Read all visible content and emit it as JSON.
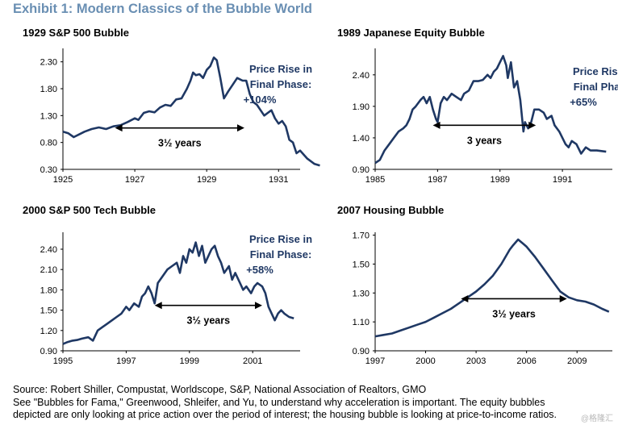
{
  "exhibit_title": "Exhibit 1: Modern Classics of the Bubble World",
  "source_lines": [
    "Source: Robert Shiller, Compustat, Worldscope, S&P, National Association of Realtors, GMO",
    "See \"Bubbles for Fama,\" Greenwood, Shleifer, and Yu, to understand why acceleration is important. The equity bubbles",
    "depicted are only looking at price action over the period of interest; the housing bubble is looking at price-to-income ratios."
  ],
  "watermark": "@格隆汇",
  "colors": {
    "line": "#1f3864",
    "title": "#6a8fb3",
    "axis": "#000000"
  },
  "chart_data": [
    {
      "type": "line",
      "title": "1929 S&P 500 Bubble",
      "phase_text": [
        "Price Rise in",
        "Final Phase:",
        "+104%"
      ],
      "span_label": "3½ years",
      "span": [
        1926.45,
        1930.05
      ],
      "span_y": 1.07,
      "xlim": [
        1925,
        1931.6
      ],
      "ylim": [
        0.3,
        2.55
      ],
      "x_ticks": [
        1925,
        1927,
        1929,
        1931
      ],
      "x_tick_labels": [
        "1925",
        "1927",
        "1929",
        "1931"
      ],
      "y_ticks": [
        0.3,
        0.8,
        1.3,
        1.8,
        2.3
      ],
      "y_tick_labels": [
        "0.30",
        "0.80",
        "1.30",
        "1.80",
        "2.30"
      ],
      "series": [
        {
          "points": [
            [
              1925,
              1.0
            ],
            [
              1925.15,
              0.97
            ],
            [
              1925.3,
              0.9
            ],
            [
              1925.45,
              0.95
            ],
            [
              1925.6,
              1.0
            ],
            [
              1925.8,
              1.05
            ],
            [
              1926,
              1.08
            ],
            [
              1926.2,
              1.05
            ],
            [
              1926.4,
              1.1
            ],
            [
              1926.6,
              1.12
            ],
            [
              1926.8,
              1.18
            ],
            [
              1927,
              1.25
            ],
            [
              1927.1,
              1.22
            ],
            [
              1927.25,
              1.35
            ],
            [
              1927.4,
              1.38
            ],
            [
              1927.55,
              1.36
            ],
            [
              1927.7,
              1.45
            ],
            [
              1927.85,
              1.5
            ],
            [
              1928,
              1.48
            ],
            [
              1928.15,
              1.6
            ],
            [
              1928.3,
              1.62
            ],
            [
              1928.45,
              1.8
            ],
            [
              1928.55,
              1.95
            ],
            [
              1928.62,
              2.1
            ],
            [
              1928.7,
              2.05
            ],
            [
              1928.8,
              2.07
            ],
            [
              1928.9,
              2.0
            ],
            [
              1929.0,
              2.15
            ],
            [
              1929.1,
              2.22
            ],
            [
              1929.2,
              2.38
            ],
            [
              1929.28,
              2.33
            ],
            [
              1929.38,
              2.0
            ],
            [
              1929.48,
              1.62
            ],
            [
              1929.6,
              1.75
            ],
            [
              1929.75,
              1.9
            ],
            [
              1929.85,
              2.0
            ],
            [
              1930.0,
              1.95
            ],
            [
              1930.1,
              1.95
            ],
            [
              1930.2,
              1.7
            ],
            [
              1930.3,
              1.55
            ],
            [
              1930.4,
              1.5
            ],
            [
              1930.5,
              1.4
            ],
            [
              1930.6,
              1.3
            ],
            [
              1930.7,
              1.35
            ],
            [
              1930.8,
              1.4
            ],
            [
              1930.9,
              1.25
            ],
            [
              1931.0,
              1.15
            ],
            [
              1931.1,
              1.2
            ],
            [
              1931.2,
              1.1
            ],
            [
              1931.3,
              0.85
            ],
            [
              1931.4,
              0.8
            ],
            [
              1931.5,
              0.6
            ],
            [
              1931.6,
              0.65
            ],
            [
              1931.8,
              0.5
            ],
            [
              1932.0,
              0.4
            ],
            [
              1932.15,
              0.37
            ]
          ]
        }
      ]
    },
    {
      "type": "line",
      "title": "1989 Japanese Equity Bubble",
      "phase_text": [
        "Price Rise in",
        "Final Phase:",
        "+65%"
      ],
      "span_label": "3 years",
      "span": [
        1986.85,
        1990.15
      ],
      "span_y": 1.6,
      "xlim": [
        1985,
        1992.6
      ],
      "ylim": [
        0.9,
        2.82
      ],
      "x_ticks": [
        1985,
        1987,
        1989,
        1991
      ],
      "x_tick_labels": [
        "1985",
        "1987",
        "1989",
        "1991"
      ],
      "y_ticks": [
        0.9,
        1.4,
        1.9,
        2.4
      ],
      "y_tick_labels": [
        "0.90",
        "1.40",
        "1.90",
        "2.40"
      ],
      "series": [
        {
          "points": [
            [
              1985,
              1.0
            ],
            [
              1985.15,
              1.05
            ],
            [
              1985.3,
              1.2
            ],
            [
              1985.45,
              1.3
            ],
            [
              1985.6,
              1.4
            ],
            [
              1985.75,
              1.5
            ],
            [
              1985.9,
              1.55
            ],
            [
              1986.0,
              1.6
            ],
            [
              1986.1,
              1.7
            ],
            [
              1986.2,
              1.85
            ],
            [
              1986.3,
              1.9
            ],
            [
              1986.45,
              2.0
            ],
            [
              1986.55,
              2.05
            ],
            [
              1986.65,
              1.95
            ],
            [
              1986.75,
              2.05
            ],
            [
              1986.85,
              1.85
            ],
            [
              1986.95,
              1.7
            ],
            [
              1987.0,
              1.65
            ],
            [
              1987.1,
              1.95
            ],
            [
              1987.2,
              2.05
            ],
            [
              1987.3,
              2.0
            ],
            [
              1987.45,
              2.1
            ],
            [
              1987.6,
              2.05
            ],
            [
              1987.75,
              2.0
            ],
            [
              1987.85,
              2.1
            ],
            [
              1988.0,
              2.15
            ],
            [
              1988.15,
              2.3
            ],
            [
              1988.3,
              2.3
            ],
            [
              1988.45,
              2.32
            ],
            [
              1988.6,
              2.4
            ],
            [
              1988.7,
              2.35
            ],
            [
              1988.8,
              2.45
            ],
            [
              1988.9,
              2.5
            ],
            [
              1989.0,
              2.6
            ],
            [
              1989.1,
              2.7
            ],
            [
              1989.2,
              2.55
            ],
            [
              1989.25,
              2.35
            ],
            [
              1989.35,
              2.6
            ],
            [
              1989.45,
              2.2
            ],
            [
              1989.55,
              2.3
            ],
            [
              1989.65,
              2.0
            ],
            [
              1989.75,
              1.5
            ],
            [
              1989.8,
              1.65
            ],
            [
              1989.9,
              1.55
            ],
            [
              1990.0,
              1.65
            ],
            [
              1990.1,
              1.85
            ],
            [
              1990.25,
              1.85
            ],
            [
              1990.4,
              1.8
            ],
            [
              1990.5,
              1.7
            ],
            [
              1990.65,
              1.75
            ],
            [
              1990.75,
              1.6
            ],
            [
              1990.9,
              1.5
            ],
            [
              1991.0,
              1.4
            ],
            [
              1991.1,
              1.3
            ],
            [
              1991.2,
              1.25
            ],
            [
              1991.3,
              1.35
            ],
            [
              1991.45,
              1.3
            ],
            [
              1991.6,
              1.15
            ],
            [
              1991.75,
              1.25
            ],
            [
              1991.9,
              1.2
            ],
            [
              1992.1,
              1.2
            ],
            [
              1992.4,
              1.18
            ]
          ]
        }
      ]
    },
    {
      "type": "line",
      "title": "2000 S&P 500 Tech Bubble",
      "phase_text": [
        "Price Rise in",
        "Final Phase:",
        "+58%"
      ],
      "span_label": "3½ years",
      "span": [
        1997.9,
        2001.3
      ],
      "span_y": 1.57,
      "xlim": [
        1995,
        2002.5
      ],
      "ylim": [
        0.9,
        2.65
      ],
      "x_ticks": [
        1995,
        1997,
        1999,
        2001
      ],
      "x_tick_labels": [
        "1995",
        "1997",
        "1999",
        "2001"
      ],
      "y_ticks": [
        0.9,
        1.2,
        1.5,
        1.8,
        2.1,
        2.4
      ],
      "y_tick_labels": [
        "0.90",
        "1.20",
        "1.50",
        "1.80",
        "2.10",
        "2.40"
      ],
      "series": [
        {
          "points": [
            [
              1995,
              1.0
            ],
            [
              1995.15,
              1.03
            ],
            [
              1995.3,
              1.05
            ],
            [
              1995.45,
              1.06
            ],
            [
              1995.6,
              1.08
            ],
            [
              1995.8,
              1.1
            ],
            [
              1995.95,
              1.05
            ],
            [
              1996.1,
              1.2
            ],
            [
              1996.25,
              1.25
            ],
            [
              1996.4,
              1.3
            ],
            [
              1996.55,
              1.35
            ],
            [
              1996.7,
              1.4
            ],
            [
              1996.85,
              1.45
            ],
            [
              1997.0,
              1.55
            ],
            [
              1997.1,
              1.5
            ],
            [
              1997.25,
              1.6
            ],
            [
              1997.4,
              1.55
            ],
            [
              1997.5,
              1.7
            ],
            [
              1997.6,
              1.75
            ],
            [
              1997.7,
              1.85
            ],
            [
              1997.8,
              1.75
            ],
            [
              1997.9,
              1.6
            ],
            [
              1998.0,
              1.9
            ],
            [
              1998.15,
              2.0
            ],
            [
              1998.3,
              2.1
            ],
            [
              1998.45,
              2.15
            ],
            [
              1998.6,
              2.2
            ],
            [
              1998.7,
              2.05
            ],
            [
              1998.8,
              2.3
            ],
            [
              1998.9,
              2.2
            ],
            [
              1999.0,
              2.4
            ],
            [
              1999.1,
              2.35
            ],
            [
              1999.2,
              2.5
            ],
            [
              1999.3,
              2.3
            ],
            [
              1999.4,
              2.45
            ],
            [
              1999.5,
              2.2
            ],
            [
              1999.6,
              2.3
            ],
            [
              1999.7,
              2.4
            ],
            [
              1999.8,
              2.45
            ],
            [
              1999.9,
              2.3
            ],
            [
              2000.0,
              2.2
            ],
            [
              2000.1,
              2.05
            ],
            [
              2000.25,
              2.15
            ],
            [
              2000.35,
              1.95
            ],
            [
              2000.45,
              2.05
            ],
            [
              2000.6,
              1.9
            ],
            [
              2000.7,
              1.8
            ],
            [
              2000.8,
              1.85
            ],
            [
              2000.95,
              1.75
            ],
            [
              2001.05,
              1.85
            ],
            [
              2001.15,
              1.9
            ],
            [
              2001.3,
              1.85
            ],
            [
              2001.4,
              1.75
            ],
            [
              2001.5,
              1.55
            ],
            [
              2001.6,
              1.45
            ],
            [
              2001.7,
              1.35
            ],
            [
              2001.8,
              1.45
            ],
            [
              2001.9,
              1.5
            ],
            [
              2002.0,
              1.45
            ],
            [
              2002.15,
              1.4
            ],
            [
              2002.3,
              1.38
            ]
          ]
        }
      ]
    },
    {
      "type": "line",
      "title": "2007 Housing Bubble",
      "span_label": "3½ years",
      "span": [
        2002.1,
        2008.4
      ],
      "span_y": 1.26,
      "xlim": [
        1997,
        2011.1
      ],
      "ylim": [
        0.9,
        1.72
      ],
      "x_ticks": [
        1997,
        2000,
        2003,
        2006,
        2009
      ],
      "x_tick_labels": [
        "1997",
        "2000",
        "2003",
        "2006",
        "2009"
      ],
      "y_ticks": [
        0.9,
        1.1,
        1.3,
        1.5,
        1.7
      ],
      "y_tick_labels": [
        "0.90",
        "1.10",
        "1.30",
        "1.50",
        "1.70"
      ],
      "series": [
        {
          "points": [
            [
              1997,
              1.0
            ],
            [
              1997.5,
              1.01
            ],
            [
              1998,
              1.02
            ],
            [
              1998.5,
              1.04
            ],
            [
              1999,
              1.06
            ],
            [
              1999.5,
              1.08
            ],
            [
              2000,
              1.1
            ],
            [
              2000.5,
              1.13
            ],
            [
              2001,
              1.16
            ],
            [
              2001.5,
              1.19
            ],
            [
              2002,
              1.23
            ],
            [
              2002.5,
              1.27
            ],
            [
              2003,
              1.31
            ],
            [
              2003.5,
              1.36
            ],
            [
              2004,
              1.42
            ],
            [
              2004.5,
              1.5
            ],
            [
              2005,
              1.6
            ],
            [
              2005.2,
              1.63
            ],
            [
              2005.5,
              1.67
            ],
            [
              2005.8,
              1.64
            ],
            [
              2006,
              1.62
            ],
            [
              2006.5,
              1.55
            ],
            [
              2007,
              1.47
            ],
            [
              2007.5,
              1.39
            ],
            [
              2008,
              1.31
            ],
            [
              2008.5,
              1.27
            ],
            [
              2009,
              1.25
            ],
            [
              2009.5,
              1.24
            ],
            [
              2010,
              1.22
            ],
            [
              2010.5,
              1.19
            ],
            [
              2010.9,
              1.17
            ]
          ]
        }
      ]
    }
  ]
}
